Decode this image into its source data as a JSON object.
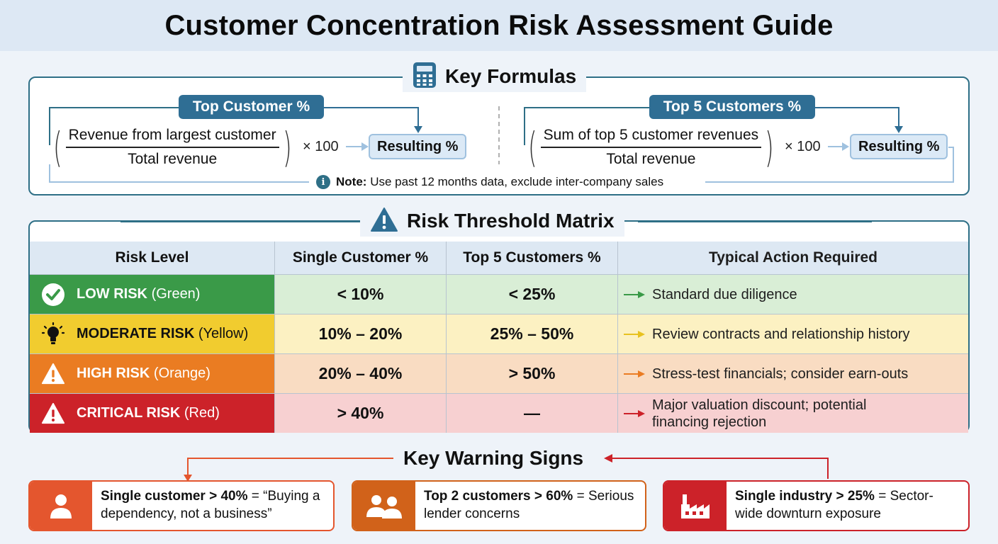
{
  "title": "Customer Concentration Risk Assessment Guide",
  "formulas": {
    "heading": "Key Formulas",
    "left": {
      "tag": "Top Customer %",
      "numerator": "Revenue from largest customer",
      "denominator": "Total revenue",
      "multiplier": "× 100",
      "result": "Resulting %"
    },
    "right": {
      "tag": "Top 5 Customers %",
      "numerator": "Sum of top 5 customer revenues",
      "denominator": "Total revenue",
      "multiplier": "× 100",
      "result": "Resulting %"
    },
    "note_label": "Note:",
    "note_text": "Use past 12 months data, exclude inter-company sales"
  },
  "matrix": {
    "heading": "Risk Threshold Matrix",
    "columns": [
      "Risk Level",
      "Single Customer %",
      "Top 5 Customers %",
      "Typical Action Required"
    ],
    "rows": [
      {
        "level": "LOW RISK",
        "color_name": "(Green)",
        "single": "< 10%",
        "top5": "< 25%",
        "action": "Standard due diligence",
        "icon": "check-circle-icon",
        "color": "#3a9a48",
        "bg": "#d9eed6",
        "arrow": "#3a9a48"
      },
      {
        "level": "MODERATE RISK",
        "color_name": "(Yellow)",
        "single": "10% – 20%",
        "top5": "25% – 50%",
        "action": "Review contracts and relationship history",
        "icon": "lightbulb-icon",
        "color": "#f1cc2f",
        "bg": "#fcf1c2",
        "arrow": "#e8c21f"
      },
      {
        "level": "HIGH RISK",
        "color_name": "(Orange)",
        "single": "20% – 40%",
        "top5": "> 50%",
        "action": "Stress-test financials; consider earn-outs",
        "icon": "warning-icon",
        "color": "#ea7c22",
        "bg": "#f9dcc2",
        "arrow": "#ea7c22"
      },
      {
        "level": "CRITICAL RISK",
        "color_name": "(Red)",
        "single": "> 40%",
        "top5": "—",
        "action": "Major valuation discount; potential financing rejection",
        "icon": "warning-icon",
        "color": "#cc2229",
        "bg": "#f7d0d1",
        "arrow": "#cc2229"
      }
    ]
  },
  "warnings": {
    "heading": "Key Warning Signs",
    "items": [
      {
        "bold": "Single customer > 40%",
        "rest": " = “Buying a dependency, not a business”",
        "icon": "person-icon",
        "color": "#e4562e"
      },
      {
        "bold": "Top 2 customers > 60%",
        "rest": " = Serious lender concerns",
        "icon": "people-icon",
        "color": "#d1621a"
      },
      {
        "bold": "Single industry > 25%",
        "rest": " = Sector-wide downturn exposure",
        "icon": "factory-icon",
        "color": "#cc2229"
      }
    ]
  }
}
